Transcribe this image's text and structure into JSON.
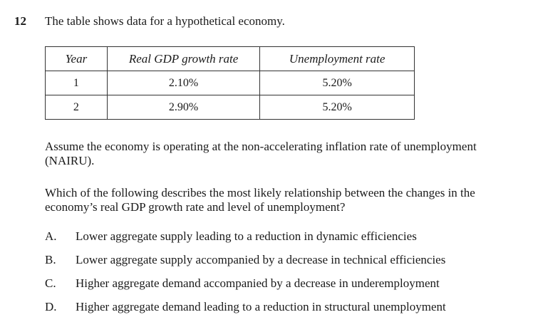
{
  "question": {
    "number": "12",
    "stem": "The table shows data for a hypothetical economy."
  },
  "table": {
    "headers": [
      "Year",
      "Real GDP growth rate",
      "Unemployment rate"
    ],
    "rows": [
      [
        "1",
        "2.10%",
        "5.20%"
      ],
      [
        "2",
        "2.90%",
        "5.20%"
      ]
    ]
  },
  "paragraphs": [
    "Assume the economy is operating at the non-accelerating inflation rate of unemployment (NAIRU).",
    "Which of the following describes the most likely relationship between the changes in the economy’s real GDP growth rate and level of unemployment?"
  ],
  "options": [
    {
      "letter": "A.",
      "text": "Lower aggregate supply leading to a reduction in dynamic efficiencies"
    },
    {
      "letter": "B.",
      "text": "Lower aggregate supply accompanied by a decrease in technical efficiencies"
    },
    {
      "letter": "C.",
      "text": "Higher aggregate demand accompanied by a decrease in underemployment"
    },
    {
      "letter": "D.",
      "text": "Higher aggregate demand leading to a reduction in structural unemployment"
    }
  ]
}
